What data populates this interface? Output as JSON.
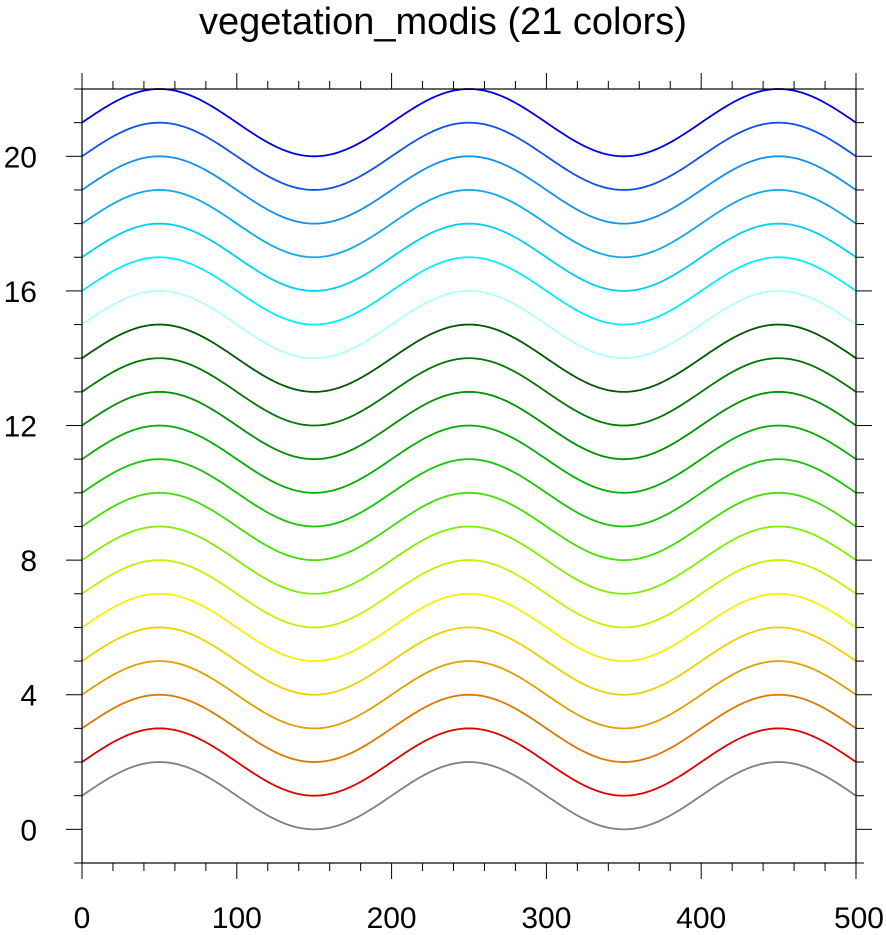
{
  "chart_data": {
    "type": "line",
    "title": "vegetation_modis (21 colors)",
    "xlabel": "",
    "ylabel": "",
    "xlim": [
      0,
      500
    ],
    "ylim": [
      -1,
      22
    ],
    "x_ticks": [
      "0",
      "100",
      "200",
      "300",
      "400",
      "500"
    ],
    "y_ticks": [
      "0",
      "4",
      "8",
      "12",
      "16",
      "20"
    ],
    "x_tick_values": [
      0,
      100,
      200,
      300,
      400,
      500
    ],
    "y_tick_values": [
      0,
      4,
      8,
      12,
      16,
      20
    ],
    "curve": "y = offset + 1 + sin(2*pi*x/200)",
    "x_range": [
      0,
      500
    ],
    "grid": false,
    "legend": "none",
    "series": [
      {
        "offset": 0,
        "color": "#808080"
      },
      {
        "offset": 1,
        "color": "#e00000"
      },
      {
        "offset": 2,
        "color": "#e07800"
      },
      {
        "offset": 3,
        "color": "#e0a000"
      },
      {
        "offset": 4,
        "color": "#f0d000"
      },
      {
        "offset": 5,
        "color": "#f8f000"
      },
      {
        "offset": 6,
        "color": "#c8f000"
      },
      {
        "offset": 7,
        "color": "#80f000"
      },
      {
        "offset": 8,
        "color": "#40e000"
      },
      {
        "offset": 9,
        "color": "#10c800"
      },
      {
        "offset": 10,
        "color": "#00b000"
      },
      {
        "offset": 11,
        "color": "#009000"
      },
      {
        "offset": 12,
        "color": "#007800"
      },
      {
        "offset": 13,
        "color": "#005800"
      },
      {
        "offset": 14,
        "color": "#b0ffff"
      },
      {
        "offset": 15,
        "color": "#00f0f8"
      },
      {
        "offset": 16,
        "color": "#00d0f0"
      },
      {
        "offset": 17,
        "color": "#10a8f0"
      },
      {
        "offset": 18,
        "color": "#1090f0"
      },
      {
        "offset": 19,
        "color": "#1050f0"
      },
      {
        "offset": 20,
        "color": "#0000e8"
      }
    ]
  }
}
